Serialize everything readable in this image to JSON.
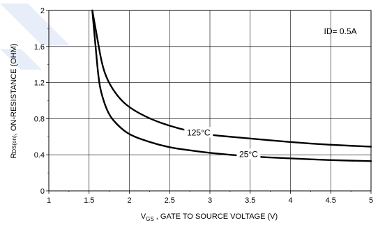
{
  "chart_data": {
    "type": "line",
    "xlabel_main": "V",
    "xlabel_sub": "GS",
    "xlabel_rest": " , GATE TO SOURCE VOLTAGE (V)",
    "ylabel_main": "R",
    "ylabel_sub": "DS(on)",
    "ylabel_rest": ", ON-RESISTANCE (OHM)",
    "xlim": [
      1,
      5
    ],
    "ylim": [
      0,
      2
    ],
    "x_ticks": [
      "1",
      "1.5",
      "2",
      "2.5",
      "3",
      "3.5",
      "4",
      "4.5",
      "5"
    ],
    "x_tick_values": [
      1,
      1.5,
      2,
      2.5,
      3,
      3.5,
      4,
      4.5,
      5
    ],
    "y_ticks": [
      "0",
      "0.4",
      "0.8",
      "1.2",
      "1.6",
      "2"
    ],
    "y_tick_values": [
      0,
      0.4,
      0.8,
      1.2,
      1.6,
      2
    ],
    "grid": true,
    "condition_label": "ID= 0.5A",
    "series": [
      {
        "name": "125°C",
        "points": [
          [
            1.54,
            2.0
          ],
          [
            1.6,
            1.7
          ],
          [
            1.66,
            1.4
          ],
          [
            1.73,
            1.22
          ],
          [
            1.85,
            1.05
          ],
          [
            2.0,
            0.92
          ],
          [
            2.25,
            0.8
          ],
          [
            2.5,
            0.72
          ],
          [
            2.75,
            0.66
          ],
          [
            3.0,
            0.62
          ],
          [
            3.25,
            0.6
          ],
          [
            3.5,
            0.58
          ],
          [
            4.0,
            0.54
          ],
          [
            4.5,
            0.51
          ],
          [
            5.0,
            0.49
          ]
        ]
      },
      {
        "name": "25°C",
        "points": [
          [
            1.54,
            2.0
          ],
          [
            1.58,
            1.6
          ],
          [
            1.62,
            1.22
          ],
          [
            1.66,
            1.05
          ],
          [
            1.74,
            0.85
          ],
          [
            1.85,
            0.73
          ],
          [
            2.0,
            0.62
          ],
          [
            2.25,
            0.54
          ],
          [
            2.5,
            0.48
          ],
          [
            2.75,
            0.45
          ],
          [
            3.0,
            0.42
          ],
          [
            3.5,
            0.38
          ],
          [
            4.0,
            0.36
          ],
          [
            4.5,
            0.34
          ],
          [
            5.0,
            0.33
          ]
        ]
      }
    ],
    "series_labels": [
      {
        "text": "125°C",
        "x": 2.86,
        "y": 0.63
      },
      {
        "text": "25°C",
        "x": 3.48,
        "y": 0.39
      }
    ]
  },
  "colors": {
    "line": "#000000",
    "grid": "#000000",
    "watermark": "#4a7cd6"
  }
}
